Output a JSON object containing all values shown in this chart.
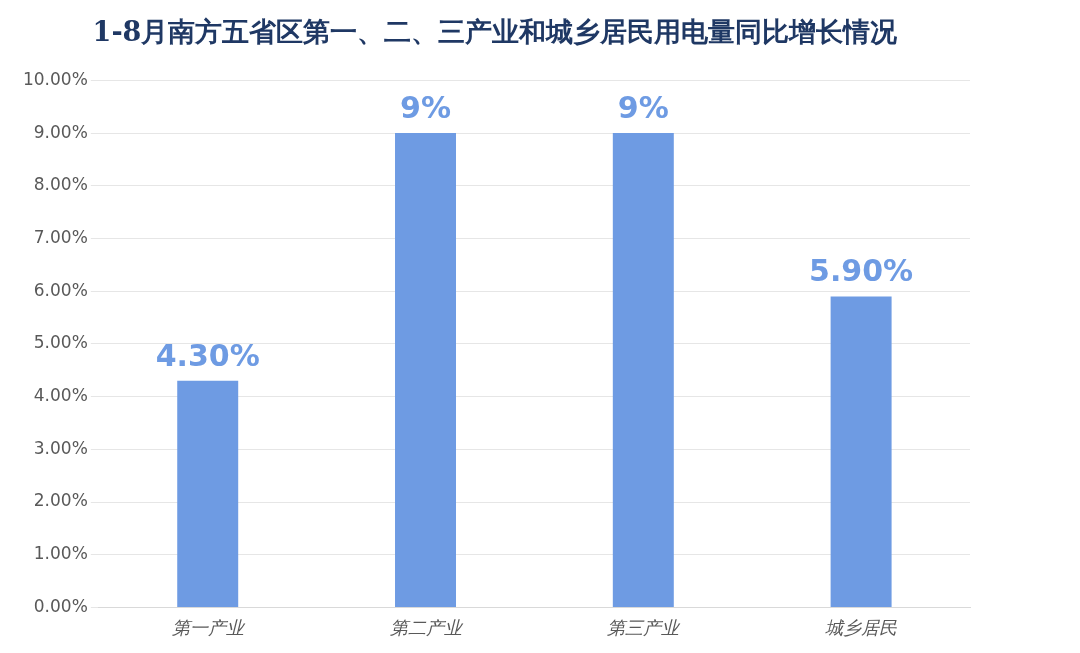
{
  "chart_data": {
    "type": "bar",
    "title": "1-8月南方五省区第一、二、三产业和城乡居民用电量同比增长情况",
    "categories": [
      "第一产业",
      "第二产业",
      "第三产业",
      "城乡居民"
    ],
    "values": [
      4.3,
      9,
      9,
      5.9
    ],
    "value_labels": [
      "4.30%",
      "9%",
      "9%",
      "5.90%"
    ],
    "color": "#6e9be3",
    "ylim": [
      0,
      10
    ],
    "yticks": [
      {
        "value": 0,
        "label": "0.00%"
      },
      {
        "value": 1,
        "label": "1.00%"
      },
      {
        "value": 2,
        "label": "2.00%"
      },
      {
        "value": 3,
        "label": "3.00%"
      },
      {
        "value": 4,
        "label": "4.00%"
      },
      {
        "value": 5,
        "label": "5.00%"
      },
      {
        "value": 6,
        "label": "6.00%"
      },
      {
        "value": 7,
        "label": "7.00%"
      },
      {
        "value": 8,
        "label": "8.00%"
      },
      {
        "value": 9,
        "label": "9.00%"
      },
      {
        "value": 10,
        "label": "10.00%"
      }
    ],
    "grid": "y"
  }
}
